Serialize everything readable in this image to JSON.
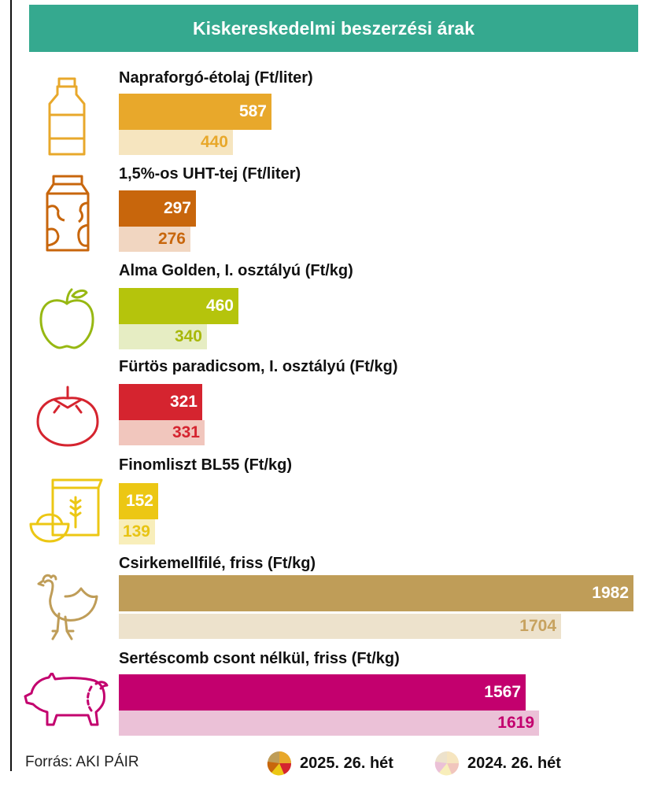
{
  "header": {
    "title": "Kiskereskedelmi beszerzési árak"
  },
  "chart_data": {
    "type": "bar",
    "orientation": "horizontal",
    "title": "Kiskereskedelmi beszerzési árak",
    "categories": [
      "Napraforgó-étolaj (Ft/liter)",
      "1,5%-os UHT-tej (Ft/liter)",
      "Alma Golden, I. osztályú (Ft/kg)",
      "Fürtös paradicsom, I. osztályú (Ft/kg)",
      "Finomliszt BL55 (Ft/kg)",
      "Csirkemellfilé, friss (Ft/kg)",
      "Sertéscomb csont nélkül, friss (Ft/kg)"
    ],
    "series": [
      {
        "name": "2025. 26. hét",
        "values": [
          587,
          297,
          460,
          321,
          152,
          1982,
          1567
        ]
      },
      {
        "name": "2024. 26. hét",
        "values": [
          440,
          276,
          340,
          331,
          139,
          1704,
          1619
        ]
      }
    ],
    "item_icons": [
      "oil-bottle-icon",
      "milk-carton-icon",
      "apple-icon",
      "tomato-icon",
      "flour-sack-icon",
      "chicken-icon",
      "pig-icon"
    ],
    "colors": {
      "primary": [
        "#e8a82b",
        "#c8660c",
        "#b5c40c",
        "#d5242f",
        "#ecc714",
        "#bf9d58",
        "#c3006e"
      ],
      "secondary": [
        "#f6e5bf",
        "#f1d6c1",
        "#e6edc3",
        "#f1c6bd",
        "#f8eeba",
        "#ede2cc",
        "#ebc1d7"
      ],
      "secondary_text": [
        "#e8a82b",
        "#c8660c",
        "#a8b80a",
        "#d5242f",
        "#e8c414",
        "#c7a25f",
        "#c3006e"
      ]
    }
  },
  "footer": {
    "source": "Forrás: AKI PÁIR",
    "legend": [
      "2025. 26. hét",
      "2024. 26. hét"
    ]
  }
}
